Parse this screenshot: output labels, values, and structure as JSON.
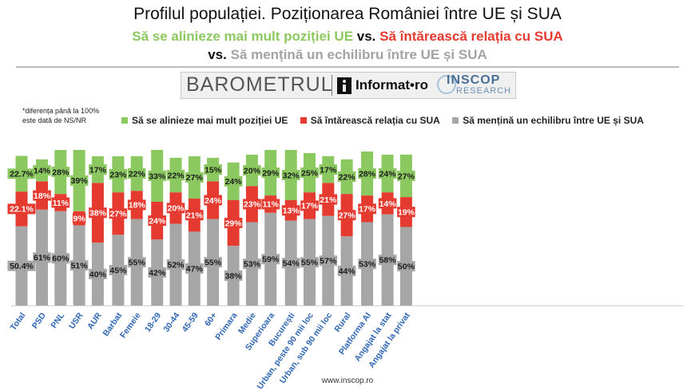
{
  "titles": {
    "line1": "Profilul populației. Poziționarea României între UE și SUA",
    "line2_green": "Să se alinieze mai mult poziției UE",
    "line2_vs": " vs. ",
    "line2_red": "Să întărească relația cu SUA",
    "line3_vs": "vs. ",
    "line3_grey": "Să mențină un echilibru între UE și SUA"
  },
  "banner": {
    "barometer": "BAROMETRUL",
    "informat": "Informat•ro",
    "inscop": "INSCOP",
    "research": "RESEARCH"
  },
  "note": {
    "line1": "*diferența până la 100%",
    "line2": "este dată de NS/NR"
  },
  "footer": "www.inscop.ro",
  "chart_data": {
    "type": "bar",
    "stacked": true,
    "legend_position": "top",
    "grid": false,
    "colors": {
      "grey": "#a6a6a6",
      "red": "#e53a2f",
      "green": "#8cc860"
    },
    "series": [
      {
        "name": "Să se alinieze mai mult poziției UE",
        "color": "#8cc860",
        "values": [
          22.7,
          14,
          28,
          39,
          17,
          23,
          22,
          33,
          22,
          27,
          15,
          24,
          20,
          29,
          32,
          25,
          17,
          22,
          28,
          24,
          27
        ],
        "labels": [
          "22.7%",
          "14%",
          "28%",
          "39%",
          "17%",
          "23%",
          "22%",
          "33%",
          "22%",
          "27%",
          "15%",
          "24%",
          "20%",
          "29%",
          "32%",
          "25%",
          "17%",
          "22%",
          "28%",
          "24%",
          "27%"
        ]
      },
      {
        "name": "Să întărească relația cu SUA",
        "color": "#e53a2f",
        "values": [
          22.1,
          18,
          11,
          9,
          38,
          27,
          18,
          24,
          20,
          21,
          24,
          29,
          23,
          11,
          13,
          17,
          21,
          27,
          17,
          14,
          19
        ],
        "labels": [
          "22.1%",
          "18%",
          "11%",
          "9%",
          "38%",
          "27%",
          "18%",
          "24%",
          "20%",
          "21%",
          "24%",
          "29%",
          "23%",
          "11%",
          "13%",
          "17%",
          "21%",
          "27%",
          "17%",
          "14%",
          "19%"
        ]
      },
      {
        "name": "Să mențină un echilibru între UE și SUA",
        "color": "#a6a6a6",
        "values": [
          50.4,
          61,
          60,
          51,
          40,
          45,
          55,
          42,
          52,
          47,
          55,
          38,
          53,
          59,
          54,
          55,
          57,
          44,
          53,
          58,
          50
        ],
        "labels": [
          "50.4%",
          "61%",
          "60%",
          "51%",
          "40%",
          "45%",
          "55%",
          "42%",
          "52%",
          "47%",
          "55%",
          "38%",
          "53%",
          "59%",
          "54%",
          "55%",
          "57%",
          "44%",
          "53%",
          "58%",
          "50%"
        ]
      }
    ],
    "categories": [
      "Total",
      "PSD",
      "PNL",
      "USR",
      "AUR",
      "Barbat",
      "Femeie",
      "18-29",
      "30-44",
      "45-59",
      "60+",
      "Primara",
      "Medie",
      "Superioara",
      "București",
      "Urban, peste 90 mii loc",
      "Urban, sub 90 mii loc",
      "Rural",
      "Platforma AI",
      "Angajat la stat",
      "Angajat la privat"
    ],
    "group_sizes": [
      1,
      4,
      2,
      4,
      3,
      4,
      1,
      2
    ]
  }
}
